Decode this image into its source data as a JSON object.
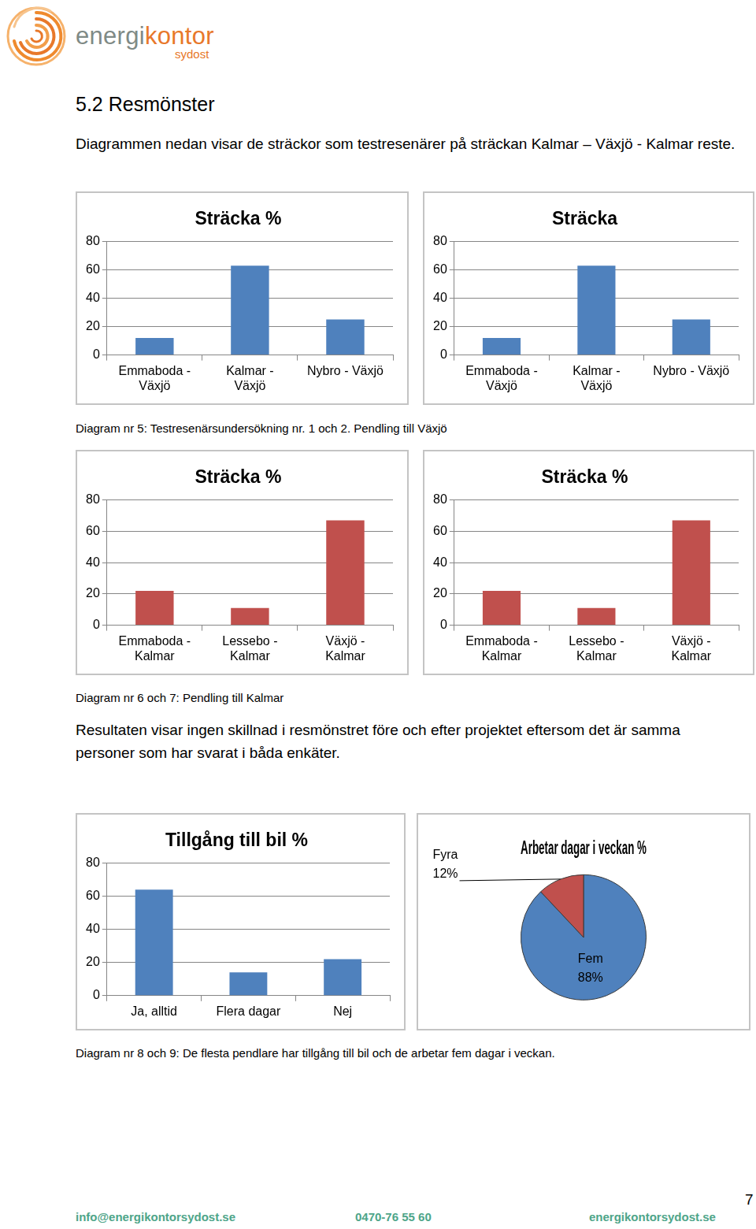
{
  "header": {
    "logo": {
      "part_1": "energi",
      "part_2": "kontor",
      "sub": "sydost"
    }
  },
  "heading": "5.2 Resmönster",
  "intro": "Diagrammen nedan visar de sträckor som testresenärer på sträckan Kalmar – Växjö - Kalmar reste.",
  "chart_data": [
    {
      "type": "bar",
      "title": "Sträcka %",
      "categories": [
        "Emmaboda - Växjö",
        "Kalmar - Växjö",
        "Nybro - Växjö"
      ],
      "values": [
        12,
        63,
        25
      ],
      "color": "#4f81bd",
      "ylim": [
        0,
        80
      ],
      "yticks": [
        0,
        20,
        40,
        60,
        80
      ],
      "grid": true
    },
    {
      "type": "bar",
      "title": "Sträcka",
      "categories": [
        "Emmaboda - Växjö",
        "Kalmar - Växjö",
        "Nybro - Växjö"
      ],
      "values": [
        12,
        63,
        25
      ],
      "color": "#4f81bd",
      "ylim": [
        0,
        80
      ],
      "yticks": [
        0,
        20,
        40,
        60,
        80
      ],
      "grid": true
    },
    {
      "type": "bar",
      "title": "Sträcka %",
      "categories": [
        "Emmaboda - Kalmar",
        "Lessebo - Kalmar",
        "Växjö - Kalmar"
      ],
      "values": [
        22,
        11,
        67
      ],
      "color": "#c0504d",
      "ylim": [
        0,
        80
      ],
      "yticks": [
        0,
        20,
        40,
        60,
        80
      ],
      "grid": true
    },
    {
      "type": "bar",
      "title": "Sträcka %",
      "categories": [
        "Emmaboda - Kalmar",
        "Lessebo - Kalmar",
        "Växjö - Kalmar"
      ],
      "values": [
        22,
        11,
        67
      ],
      "color": "#c0504d",
      "ylim": [
        0,
        80
      ],
      "yticks": [
        0,
        20,
        40,
        60,
        80
      ],
      "grid": true
    },
    {
      "type": "bar",
      "title": "Tillgång till bil %",
      "categories": [
        "Ja, alltid",
        "Flera dagar",
        "Nej"
      ],
      "values": [
        64,
        14,
        22
      ],
      "color": "#4f81bd",
      "ylim": [
        0,
        80
      ],
      "yticks": [
        0,
        20,
        40,
        60,
        80
      ],
      "grid": true
    },
    {
      "type": "pie",
      "title": "Arbetar dagar i veckan %",
      "categories": [
        "Fem",
        "Fyra"
      ],
      "values": [
        88,
        12
      ],
      "value_labels": [
        "88%",
        "12%"
      ],
      "colors": [
        "#4f81bd",
        "#c0504d"
      ],
      "data_labels": true
    }
  ],
  "captions": [
    "Diagram nr 5: Testresenärsundersökning nr. 1 och 2. Pendling till Växjö",
    "Diagram nr 6 och 7: Pendling till Kalmar",
    "Diagram nr 8 och 9: De flesta pendlare har tillgång till bil och de arbetar fem dagar i veckan."
  ],
  "paragraph": "Resultaten visar ingen skillnad i resmönstret före och efter projektet eftersom det är samma personer som har svarat i båda enkäter.",
  "footer": {
    "email": "info@energikontorsydost.se",
    "phone": "0470-76 55 60",
    "web": "energikontorsydost.se",
    "page": 7
  }
}
